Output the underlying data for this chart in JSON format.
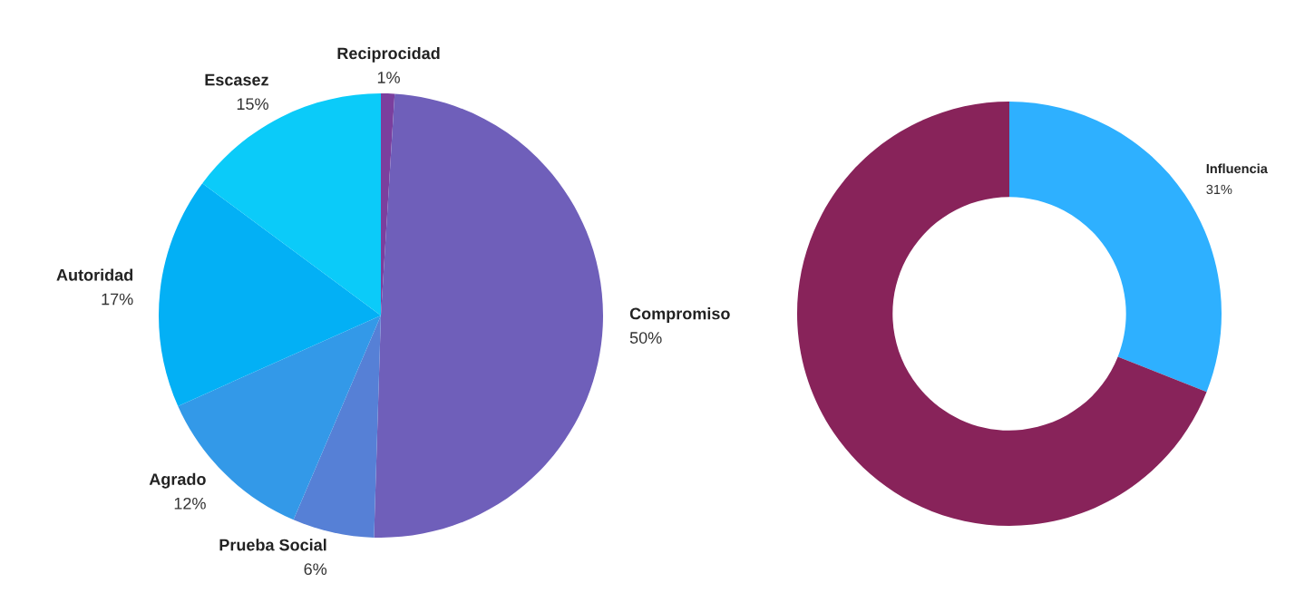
{
  "chart_data": [
    {
      "type": "pie",
      "categories": [
        "Reciprocidad",
        "Compromiso",
        "Prueba Social",
        "Agrado",
        "Autoridad",
        "Escasez"
      ],
      "values": [
        1,
        50,
        6,
        12,
        17,
        15
      ],
      "colors": [
        "#7b3f9e",
        "#6f5fba",
        "#5680d6",
        "#3399e8",
        "#03b0f5",
        "#0bcbf9"
      ],
      "value_labels": [
        "1%",
        "50%",
        "6%",
        "12%",
        "17%",
        "15%"
      ]
    },
    {
      "type": "donut",
      "categories": [
        "Influencia",
        null
      ],
      "values": [
        31,
        69
      ],
      "colors": [
        "#2eb0ff",
        "#88235a"
      ],
      "value_labels": [
        "31%",
        null
      ]
    }
  ]
}
